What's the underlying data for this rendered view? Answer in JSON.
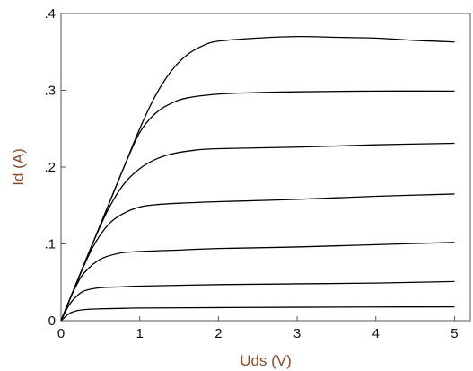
{
  "chart_data": {
    "type": "line",
    "title": "",
    "xlabel": "Uds (V)",
    "ylabel": "Id (A)",
    "xlim": [
      0,
      5.2
    ],
    "ylim": [
      0,
      0.4
    ],
    "grid": false,
    "x_ticks": [
      {
        "value": 0,
        "label": "0"
      },
      {
        "value": 1,
        "label": "1"
      },
      {
        "value": 2,
        "label": "2"
      },
      {
        "value": 3,
        "label": "3"
      },
      {
        "value": 4,
        "label": "4"
      },
      {
        "value": 5,
        "label": "5"
      }
    ],
    "y_ticks": [
      {
        "value": 0,
        "label": "0"
      },
      {
        "value": 0.1,
        "label": ".1"
      },
      {
        "value": 0.2,
        "label": ".2"
      },
      {
        "value": 0.3,
        "label": ".3"
      },
      {
        "value": 0.4,
        "label": ".4"
      }
    ],
    "series": [
      {
        "x": [
          0,
          0.1,
          0.2,
          0.3,
          0.5,
          0.75,
          1,
          2,
          3,
          4,
          5
        ],
        "values": [
          0,
          0.009,
          0.013,
          0.0145,
          0.0155,
          0.016,
          0.0165,
          0.017,
          0.0175,
          0.0178,
          0.018
        ]
      },
      {
        "x": [
          0,
          0.1,
          0.2,
          0.3,
          0.5,
          0.75,
          1,
          2,
          3,
          4,
          5
        ],
        "values": [
          0,
          0.02,
          0.032,
          0.039,
          0.043,
          0.044,
          0.045,
          0.047,
          0.048,
          0.049,
          0.051
        ]
      },
      {
        "x": [
          0,
          0.1,
          0.2,
          0.3,
          0.5,
          0.75,
          1,
          1.5,
          2,
          3,
          4,
          5
        ],
        "values": [
          0,
          0.025,
          0.047,
          0.063,
          0.08,
          0.088,
          0.09,
          0.092,
          0.094,
          0.096,
          0.099,
          0.102
        ]
      },
      {
        "x": [
          0,
          0.2,
          0.4,
          0.6,
          0.8,
          1,
          1.2,
          1.5,
          2,
          3,
          4,
          5
        ],
        "values": [
          0,
          0.05,
          0.095,
          0.125,
          0.14,
          0.148,
          0.151,
          0.153,
          0.155,
          0.158,
          0.162,
          0.165
        ]
      },
      {
        "x": [
          0,
          0.2,
          0.4,
          0.6,
          0.8,
          1,
          1.2,
          1.4,
          1.7,
          2,
          3,
          4,
          5
        ],
        "values": [
          0,
          0.05,
          0.1,
          0.145,
          0.178,
          0.198,
          0.21,
          0.217,
          0.222,
          0.224,
          0.226,
          0.229,
          0.231
        ]
      },
      {
        "x": [
          0,
          0.2,
          0.4,
          0.6,
          0.8,
          1,
          1.2,
          1.4,
          1.6,
          2,
          2.5,
          3,
          4,
          5
        ],
        "values": [
          0,
          0.05,
          0.1,
          0.15,
          0.2,
          0.245,
          0.27,
          0.283,
          0.29,
          0.295,
          0.297,
          0.298,
          0.299,
          0.299
        ]
      },
      {
        "x": [
          0,
          0.2,
          0.4,
          0.6,
          0.8,
          1,
          1.2,
          1.4,
          1.6,
          1.8,
          2,
          2.5,
          3,
          3.5,
          4,
          4.5,
          5
        ],
        "values": [
          0,
          0.05,
          0.1,
          0.15,
          0.2,
          0.25,
          0.293,
          0.325,
          0.346,
          0.358,
          0.364,
          0.368,
          0.37,
          0.369,
          0.368,
          0.365,
          0.363
        ]
      }
    ]
  }
}
